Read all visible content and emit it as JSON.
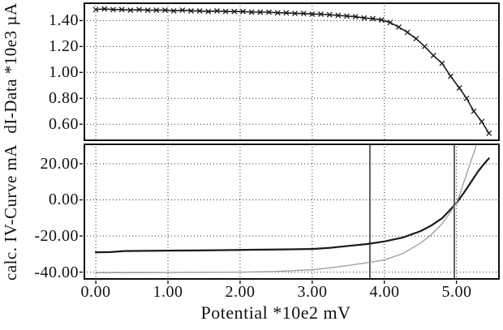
{
  "figure": {
    "background": "#ffffff",
    "curve_black": "#1a1a1a",
    "curve_gray": "#9b9b9b",
    "grid_color": "#2b2b2b",
    "border_color": "#111111"
  },
  "chart_data": [
    {
      "type": "line",
      "panel": "top",
      "title": "",
      "xlabel": "",
      "ylabel": "dI-Data *10e3 µA",
      "xlim": [
        -0.17,
        5.6
      ],
      "ylim": [
        0.47,
        1.54
      ],
      "grid": true,
      "x_gridlines": [
        0,
        1,
        2,
        3,
        4
      ],
      "y_gridlines": [
        1.4,
        1.2,
        1.0,
        0.8,
        0.6
      ],
      "y_ticks": [
        {
          "value": 1.4,
          "label": "1.40"
        },
        {
          "value": 1.2,
          "label": "1.20"
        },
        {
          "value": 1.0,
          "label": "1.00"
        },
        {
          "value": 0.8,
          "label": "0.80"
        },
        {
          "value": 0.6,
          "label": "0.60"
        }
      ],
      "series": [
        {
          "name": "dI-Data",
          "marker": "x",
          "color": "#1a1a1a",
          "width": 1.6,
          "points": [
            [
              0.0,
              1.485
            ],
            [
              0.12,
              1.49
            ],
            [
              0.24,
              1.485
            ],
            [
              0.36,
              1.485
            ],
            [
              0.48,
              1.48
            ],
            [
              0.6,
              1.485
            ],
            [
              0.72,
              1.48
            ],
            [
              0.84,
              1.48
            ],
            [
              0.96,
              1.48
            ],
            [
              1.08,
              1.475
            ],
            [
              1.2,
              1.48
            ],
            [
              1.32,
              1.475
            ],
            [
              1.44,
              1.475
            ],
            [
              1.56,
              1.47
            ],
            [
              1.68,
              1.475
            ],
            [
              1.8,
              1.47
            ],
            [
              1.92,
              1.47
            ],
            [
              2.04,
              1.47
            ],
            [
              2.16,
              1.465
            ],
            [
              2.28,
              1.465
            ],
            [
              2.4,
              1.465
            ],
            [
              2.52,
              1.46
            ],
            [
              2.64,
              1.46
            ],
            [
              2.76,
              1.455
            ],
            [
              2.88,
              1.455
            ],
            [
              3.0,
              1.45
            ],
            [
              3.12,
              1.45
            ],
            [
              3.24,
              1.445
            ],
            [
              3.36,
              1.44
            ],
            [
              3.48,
              1.435
            ],
            [
              3.6,
              1.43
            ],
            [
              3.72,
              1.42
            ],
            [
              3.84,
              1.415
            ],
            [
              3.96,
              1.405
            ],
            [
              4.08,
              1.385
            ],
            [
              4.2,
              1.35
            ],
            [
              4.32,
              1.31
            ],
            [
              4.44,
              1.26
            ],
            [
              4.56,
              1.2
            ],
            [
              4.68,
              1.13
            ],
            [
              4.8,
              1.07
            ],
            [
              4.92,
              0.97
            ],
            [
              5.04,
              0.88
            ],
            [
              5.14,
              0.8
            ],
            [
              5.24,
              0.7
            ],
            [
              5.35,
              0.62
            ],
            [
              5.45,
              0.53
            ]
          ]
        }
      ]
    },
    {
      "type": "line",
      "panel": "bottom",
      "title": "",
      "xlabel": "Potential *10e2 mV",
      "ylabel": "calc. IV-Curve mA",
      "xlim": [
        -0.17,
        5.6
      ],
      "ylim": [
        -44.2,
        31.2
      ],
      "grid": true,
      "x_gridlines": [
        0,
        1,
        2,
        3,
        4,
        5
      ],
      "y_gridlines": [
        20,
        0,
        -20,
        -40
      ],
      "y_ticks": [
        {
          "value": 20,
          "label": "20.00"
        },
        {
          "value": 0,
          "label": "0.00"
        },
        {
          "value": -20,
          "label": "-20.00"
        },
        {
          "value": -40,
          "label": "-40.00"
        }
      ],
      "x_ticks": [
        {
          "value": 0,
          "label": "0.00"
        },
        {
          "value": 1,
          "label": "1.00"
        },
        {
          "value": 2,
          "label": "2.00"
        },
        {
          "value": 3,
          "label": "3.00"
        },
        {
          "value": 4,
          "label": "4.00"
        },
        {
          "value": 5,
          "label": "5.00"
        }
      ],
      "cursor_lines_x": [
        3.8,
        4.97
      ],
      "series": [
        {
          "name": "calc-iv-curve-black",
          "marker": "none",
          "color": "#1a1a1a",
          "width": 2.2,
          "points": [
            [
              0.0,
              -29.0
            ],
            [
              0.2,
              -28.9
            ],
            [
              0.4,
              -28.3
            ],
            [
              0.7,
              -28.2
            ],
            [
              1.0,
              -28.1
            ],
            [
              1.4,
              -28.0
            ],
            [
              1.8,
              -27.8
            ],
            [
              2.2,
              -27.6
            ],
            [
              2.6,
              -27.4
            ],
            [
              3.0,
              -27.2
            ],
            [
              3.25,
              -26.5
            ],
            [
              3.5,
              -25.5
            ],
            [
              3.75,
              -24.5
            ],
            [
              4.0,
              -23.0
            ],
            [
              4.25,
              -20.9
            ],
            [
              4.5,
              -17.3
            ],
            [
              4.65,
              -14.2
            ],
            [
              4.8,
              -10.2
            ],
            [
              4.9,
              -6.0
            ],
            [
              5.0,
              -1.7
            ],
            [
              5.1,
              3.8
            ],
            [
              5.2,
              9.7
            ],
            [
              5.3,
              15.8
            ],
            [
              5.38,
              19.8
            ],
            [
              5.45,
              23.0
            ]
          ]
        },
        {
          "name": "iv-curve-gray",
          "marker": "none",
          "color": "#9b9b9b",
          "width": 1.3,
          "points": [
            [
              0.0,
              -40.3
            ],
            [
              0.5,
              -40.3
            ],
            [
              1.0,
              -40.2
            ],
            [
              1.5,
              -40.1
            ],
            [
              2.0,
              -40.0
            ],
            [
              2.5,
              -39.6
            ],
            [
              3.0,
              -38.7
            ],
            [
              3.25,
              -37.6
            ],
            [
              3.5,
              -36.3
            ],
            [
              3.75,
              -34.8
            ],
            [
              4.0,
              -33.3
            ],
            [
              4.25,
              -29.8
            ],
            [
              4.5,
              -24.0
            ],
            [
              4.65,
              -19.3
            ],
            [
              4.8,
              -13.2
            ],
            [
              4.9,
              -7.8
            ],
            [
              5.0,
              -1.6
            ],
            [
              5.05,
              3.5
            ],
            [
              5.1,
              9.5
            ],
            [
              5.15,
              15.5
            ],
            [
              5.2,
              21.5
            ],
            [
              5.25,
              27.0
            ],
            [
              5.28,
              31.2
            ]
          ]
        }
      ]
    }
  ]
}
